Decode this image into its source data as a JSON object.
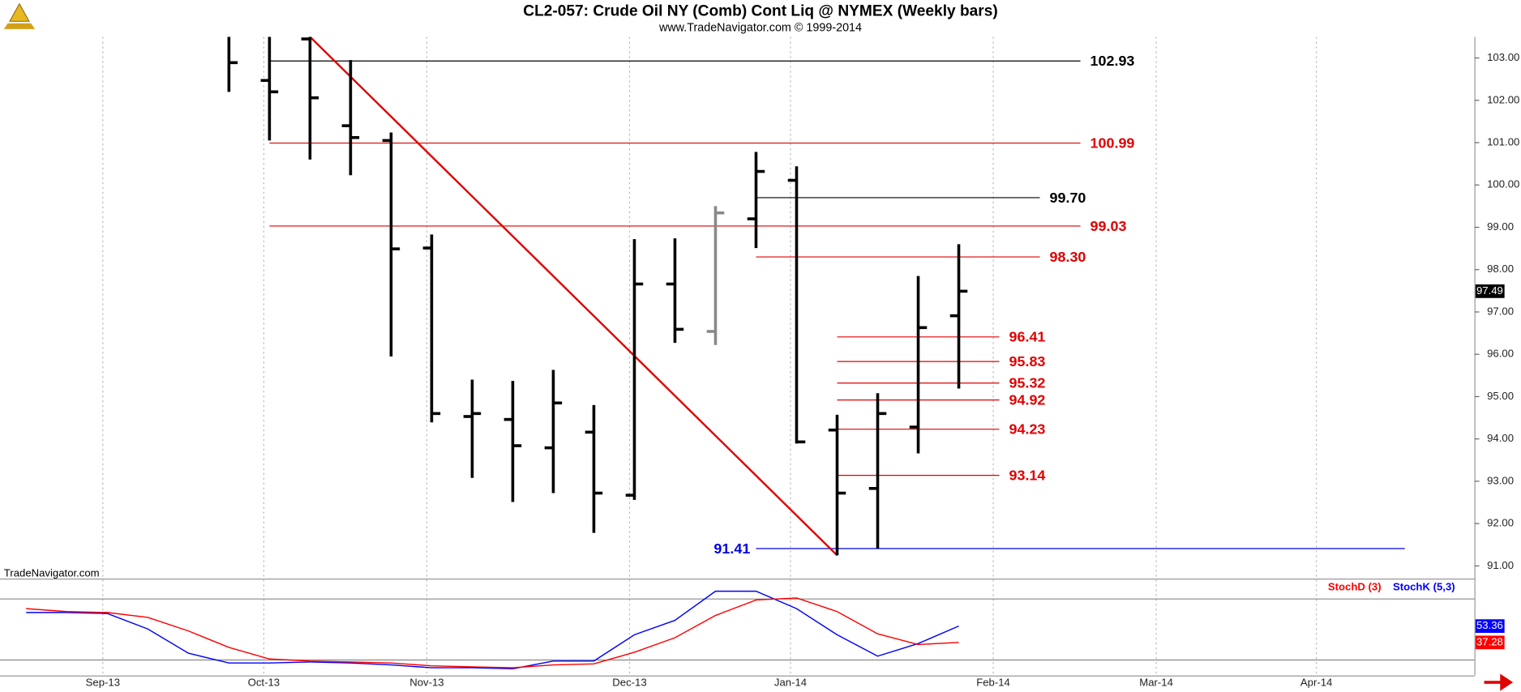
{
  "chart_data": [
    {
      "type": "ohlc",
      "title": "CL2-057:  Crude Oil NY (Comb) Cont Liq @ NYMEX  (Weekly bars)",
      "subtitle": "www.TradeNavigator.com © 1999-2014",
      "watermark": "TradeNavigator.com",
      "x": [
        0,
        1,
        2,
        3,
        4,
        5,
        6,
        7,
        8,
        9,
        10,
        11,
        12,
        13,
        14,
        15,
        16,
        17,
        18
      ],
      "open": [
        103.6,
        102.47,
        103.45,
        101.4,
        101.05,
        98.51,
        94.53,
        94.46,
        93.79,
        94.16,
        92.67,
        97.66,
        96.54,
        99.2,
        100.11,
        94.21,
        92.83,
        94.28,
        96.91
      ],
      "high": [
        103.7,
        103.6,
        103.5,
        102.95,
        101.24,
        98.83,
        95.4,
        95.37,
        95.63,
        94.8,
        98.72,
        98.74,
        99.5,
        100.78,
        100.44,
        94.57,
        95.08,
        97.85,
        98.6
      ],
      "low": [
        102.2,
        101.05,
        100.6,
        100.23,
        95.95,
        94.39,
        93.08,
        92.51,
        92.72,
        91.78,
        92.56,
        96.27,
        96.22,
        98.51,
        93.89,
        91.25,
        91.41,
        93.66,
        95.19
      ],
      "close": [
        102.89,
        102.2,
        102.06,
        101.12,
        98.49,
        94.6,
        94.6,
        93.84,
        94.85,
        92.72,
        97.66,
        96.59,
        99.34,
        100.32,
        93.93,
        92.72,
        94.6,
        96.63,
        97.49
      ],
      "colors": [
        "#000",
        "#000",
        "#000",
        "#000",
        "#000",
        "#000",
        "#000",
        "#000",
        "#000",
        "#000",
        "#000",
        "#000",
        "#888",
        "#000",
        "#000",
        "#000",
        "#000",
        "#000",
        "#000"
      ],
      "xlim": [
        -5.646,
        30.718
      ],
      "xticks": [
        {
          "value": -3.11,
          "label": "Sep-13"
        },
        {
          "value": 0.86,
          "label": "Oct-13"
        },
        {
          "value": 4.88,
          "label": "Nov-13"
        },
        {
          "value": 9.88,
          "label": "Dec-13"
        },
        {
          "value": 13.85,
          "label": "Jan-14"
        },
        {
          "value": 18.85,
          "label": "Feb-14"
        },
        {
          "value": 22.87,
          "label": "Mar-14"
        },
        {
          "value": 26.82,
          "label": "Apr-14"
        }
      ],
      "ylim": [
        90.7,
        103.5
      ],
      "yticks": [
        {
          "value": 91,
          "label": "91.00"
        },
        {
          "value": 92,
          "label": "92.00"
        },
        {
          "value": 93,
          "label": "93.00"
        },
        {
          "value": 94,
          "label": "94.00"
        },
        {
          "value": 95,
          "label": "95.00"
        },
        {
          "value": 96,
          "label": "96.00"
        },
        {
          "value": 97,
          "label": "97.00"
        },
        {
          "value": 98,
          "label": "98.00"
        },
        {
          "value": 99,
          "label": "99.00"
        },
        {
          "value": 100,
          "label": "100.00"
        },
        {
          "value": 101,
          "label": "101.00"
        },
        {
          "value": 102,
          "label": "102.00"
        },
        {
          "value": 103,
          "label": "103.00"
        }
      ],
      "grid": true,
      "trendline": {
        "x": [
          2,
          15
        ],
        "y": [
          103.5,
          91.25
        ],
        "color": "#e00000"
      },
      "levels": [
        {
          "value": 102.93,
          "label": "102.93",
          "x": [
            1,
            21
          ],
          "color": "#000000",
          "label_side": "right"
        },
        {
          "value": 100.99,
          "label": "100.99",
          "x": [
            1,
            21
          ],
          "color": "#e00000",
          "label_side": "right"
        },
        {
          "value": 99.7,
          "label": "99.70",
          "x": [
            13,
            20
          ],
          "color": "#000000",
          "label_side": "right"
        },
        {
          "value": 99.03,
          "label": "99.03",
          "x": [
            1,
            21
          ],
          "color": "#e00000",
          "label_side": "right"
        },
        {
          "value": 98.3,
          "label": "98.30",
          "x": [
            13,
            20
          ],
          "color": "#e00000",
          "label_side": "right"
        },
        {
          "value": 96.41,
          "label": "96.41",
          "x": [
            15,
            19
          ],
          "color": "#e00000",
          "label_side": "right"
        },
        {
          "value": 95.83,
          "label": "95.83",
          "x": [
            15,
            19
          ],
          "color": "#e00000",
          "label_side": "right"
        },
        {
          "value": 95.32,
          "label": "95.32",
          "x": [
            15,
            19
          ],
          "color": "#e00000",
          "label_side": "right"
        },
        {
          "value": 94.92,
          "label": "94.92",
          "x": [
            15,
            19
          ],
          "color": "#e00000",
          "label_side": "right"
        },
        {
          "value": 94.23,
          "label": "94.23",
          "x": [
            15,
            19
          ],
          "color": "#e00000",
          "label_side": "right"
        },
        {
          "value": 93.14,
          "label": "93.14",
          "x": [
            15,
            19
          ],
          "color": "#e00000",
          "label_side": "right"
        },
        {
          "value": 91.41,
          "label": "91.41",
          "x": [
            13,
            29
          ],
          "color": "#0000e0",
          "label_side": "left"
        }
      ]
    },
    {
      "type": "line",
      "x": [
        -5,
        -4,
        -3,
        -2,
        -1,
        0,
        1,
        2,
        3,
        4,
        5,
        6,
        7,
        8,
        9,
        10,
        11,
        12,
        13,
        14,
        15,
        16,
        17,
        18
      ],
      "ylim": [
        0,
        100
      ],
      "reference_lines": [
        20,
        80
      ],
      "series": [
        {
          "name": "StochD (3)",
          "color": "#ff0000",
          "values": [
            70.5,
            67.6,
            66.7,
            61.9,
            48.6,
            32.4,
            21,
            19,
            18.1,
            17.1,
            14.3,
            13.3,
            12.4,
            15.2,
            16.2,
            27.6,
            41.9,
            63.8,
            79,
            81,
            67.6,
            45.7,
            35.2,
            37.28
          ]
        },
        {
          "name": "StochK (5,3)",
          "color": "#0000ff",
          "values": [
            66.7,
            66.7,
            65.7,
            50.5,
            26.7,
            17.1,
            17.1,
            18.1,
            17.1,
            15.2,
            12.4,
            12.4,
            11.4,
            19,
            19,
            44.8,
            59,
            87.6,
            87.6,
            70.5,
            44.8,
            23.8,
            36.2,
            53.36
          ]
        }
      ]
    }
  ]
}
